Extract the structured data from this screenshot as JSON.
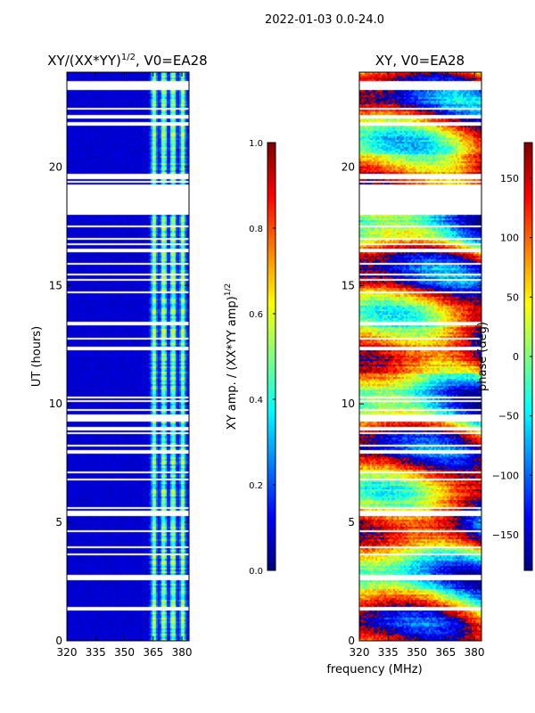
{
  "chart_data": {
    "type": "heatmap",
    "suptitle": "2022-01-03 0.0-24.0",
    "shared_xlabel": "frequency (MHz)",
    "flagged_hours": [
      [
        2.6,
        2.85
      ],
      [
        5.3,
        5.5
      ],
      [
        9.3,
        9.6
      ],
      [
        18.15,
        19.3
      ],
      [
        19.5,
        19.75
      ],
      [
        23.3,
        23.65
      ]
    ],
    "panels": [
      {
        "title_main": "XY/(XX*YY)",
        "title_sup": "1/2",
        "title_tail": ", V0=EA28",
        "ylabel": "UT (hours)",
        "xlim": [
          320,
          383.7
        ],
        "ylim": [
          0,
          24
        ],
        "xticks": [
          "320",
          "335",
          "350",
          "365",
          "380"
        ],
        "xtick_values": [
          320,
          335,
          350,
          365,
          380
        ],
        "yticks": [
          "0",
          "5",
          "10",
          "15",
          "20"
        ],
        "ytick_values": [
          0,
          5,
          10,
          15,
          20
        ],
        "colorbar": {
          "label_main": "XY amp. / (XX*YY amp)",
          "label_sup": "1/2",
          "range": [
            0.0,
            1.0
          ],
          "ticks": [
            "0.0",
            "0.2",
            "0.4",
            "0.6",
            "0.8",
            "1.0"
          ],
          "tick_values": [
            0,
            0.2,
            0.4,
            0.6,
            0.8,
            1.0
          ],
          "colormap": "jet"
        }
      },
      {
        "title_main": "XY, V0=EA28",
        "xlim": [
          320,
          383.7
        ],
        "ylim": [
          0,
          24
        ],
        "xticks": [
          "320",
          "335",
          "350",
          "365",
          "380"
        ],
        "xtick_values": [
          320,
          335,
          350,
          365,
          380
        ],
        "yticks": [
          "0",
          "5",
          "10",
          "15",
          "20"
        ],
        "ytick_values": [
          0,
          5,
          10,
          15,
          20
        ],
        "colorbar": {
          "label_main": "phase (deg)",
          "range": [
            -180,
            180
          ],
          "ticks": [
            "−150",
            "−100",
            "−50",
            "0",
            "50",
            "100",
            "150"
          ],
          "tick_values": [
            -150,
            -100,
            -50,
            0,
            50,
            100,
            150
          ],
          "colormap": "jet"
        }
      }
    ]
  }
}
